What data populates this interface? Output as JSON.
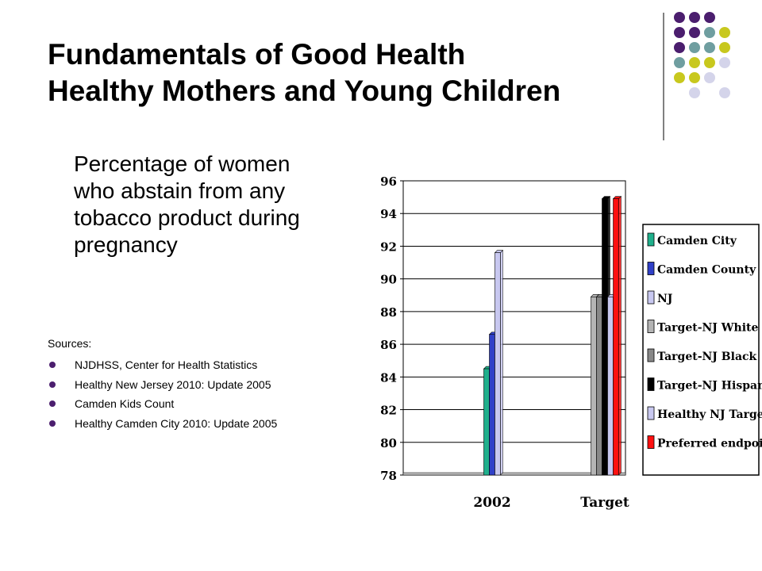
{
  "slide": {
    "title_lines": [
      "Fundamentals of Good Health",
      "Healthy Mothers and Young Children"
    ],
    "subtitle": "Percentage of women who abstain from any tobacco product during pregnancy",
    "sources_label": "Sources:",
    "sources": [
      "NJDHSS, Center for Health Statistics",
      "Healthy New Jersey 2010:  Update 2005",
      "Camden Kids Count",
      "Healthy Camden City 2010:  Update 2005"
    ],
    "decoration": {
      "type": "dot-grid",
      "colors": [
        "#4b1e6e",
        "#6f9ea0",
        "#c8c81e",
        "#d4d4ea"
      ]
    }
  },
  "chart_data": {
    "type": "bar",
    "title": "",
    "xlabel": "",
    "ylabel": "",
    "categories": [
      "2002",
      "Target"
    ],
    "ylim": [
      78,
      96
    ],
    "yticks": [
      78,
      80,
      82,
      84,
      86,
      88,
      90,
      92,
      94,
      96
    ],
    "grid": true,
    "legend_position": "right",
    "series": [
      {
        "name": "Camden City",
        "color": "#20b08c",
        "values": [
          84.5,
          null
        ]
      },
      {
        "name": "Camden County",
        "color": "#3040c8",
        "values": [
          86.6,
          null
        ]
      },
      {
        "name": "NJ",
        "color": "#c8c8f0",
        "values": [
          91.6,
          null
        ]
      },
      {
        "name": "Target-NJ White",
        "color": "#b4b4b4",
        "values": [
          null,
          88.9
        ]
      },
      {
        "name": "Target-NJ Black",
        "color": "#888888",
        "values": [
          null,
          88.9
        ]
      },
      {
        "name": "Target-NJ Hispanic",
        "color": "#000000",
        "values": [
          null,
          94.9
        ]
      },
      {
        "name": "Healthy NJ Target",
        "color": "#c8c8f0",
        "values": [
          null,
          88.9
        ]
      },
      {
        "name": "Preferred endpoint",
        "color": "#ff1010",
        "values": [
          null,
          94.9
        ]
      }
    ]
  }
}
